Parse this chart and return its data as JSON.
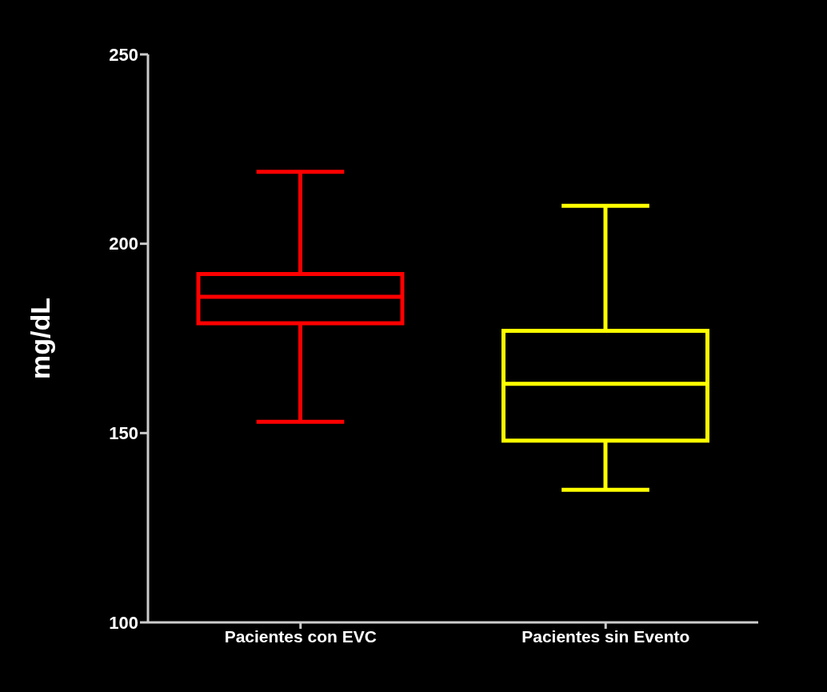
{
  "chart_data": {
    "type": "box",
    "ylabel": "mg/dL",
    "categories": [
      "Pacientes con EVC",
      "Pacientes sin Evento"
    ],
    "boxes": [
      {
        "low": 153,
        "q1": 179,
        "median": 186,
        "q3": 192,
        "high": 219
      },
      {
        "low": 135,
        "q1": 148,
        "median": 163,
        "q3": 177,
        "high": 210
      }
    ],
    "colors": [
      "#ff0000",
      "#ffff00"
    ],
    "ylim": [
      100,
      250
    ],
    "yticks": [
      100,
      150,
      200,
      250
    ]
  }
}
